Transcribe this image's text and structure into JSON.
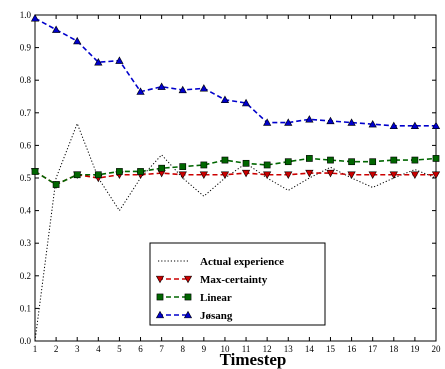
{
  "chart_data": {
    "type": "line",
    "xlabel": "Timestep",
    "ylabel": "",
    "xlim": [
      1,
      20
    ],
    "ylim": [
      0.0,
      1.0
    ],
    "x_ticks": [
      "1",
      "2",
      "3",
      "4",
      "5",
      "6",
      "7",
      "8",
      "9",
      "10",
      "11",
      "12",
      "13",
      "14",
      "15",
      "16",
      "17",
      "18",
      "19",
      "20"
    ],
    "y_ticks": [
      "0.0",
      "0.1",
      "0.2",
      "0.3",
      "0.4",
      "0.5",
      "0.6",
      "0.7",
      "0.8",
      "0.9",
      "1.0"
    ],
    "grid": false,
    "legend_position": "bottom-center",
    "x": [
      1,
      2,
      3,
      4,
      5,
      6,
      7,
      8,
      9,
      10,
      11,
      12,
      13,
      14,
      15,
      16,
      17,
      18,
      19,
      20
    ],
    "series": [
      {
        "name": "Actual experience",
        "color": "#000000",
        "style": "dotted",
        "marker": "none",
        "values": [
          0.0,
          0.5,
          0.667,
          0.5,
          0.4,
          0.5,
          0.571,
          0.5,
          0.444,
          0.5,
          0.545,
          0.5,
          0.462,
          0.5,
          0.533,
          0.5,
          0.471,
          0.5,
          0.526,
          0.5
        ]
      },
      {
        "name": "Max-certainty",
        "color": "#cc0000",
        "style": "dashed",
        "marker": "triangle-down",
        "values": [
          0.52,
          0.48,
          0.51,
          0.5,
          0.51,
          0.51,
          0.515,
          0.51,
          0.51,
          0.51,
          0.515,
          0.51,
          0.51,
          0.515,
          0.515,
          0.51,
          0.51,
          0.51,
          0.51,
          0.51
        ]
      },
      {
        "name": "Linear",
        "color": "#006600",
        "style": "dashed",
        "marker": "square",
        "values": [
          0.52,
          0.48,
          0.51,
          0.51,
          0.52,
          0.52,
          0.53,
          0.535,
          0.54,
          0.555,
          0.545,
          0.54,
          0.55,
          0.56,
          0.555,
          0.55,
          0.55,
          0.555,
          0.555,
          0.56
        ]
      },
      {
        "name": "Jøsang",
        "color": "#0000cc",
        "style": "dashed",
        "marker": "triangle-up",
        "values": [
          0.99,
          0.955,
          0.92,
          0.855,
          0.86,
          0.765,
          0.78,
          0.77,
          0.775,
          0.74,
          0.73,
          0.67,
          0.67,
          0.68,
          0.675,
          0.67,
          0.665,
          0.66,
          0.66,
          0.66
        ]
      }
    ]
  }
}
